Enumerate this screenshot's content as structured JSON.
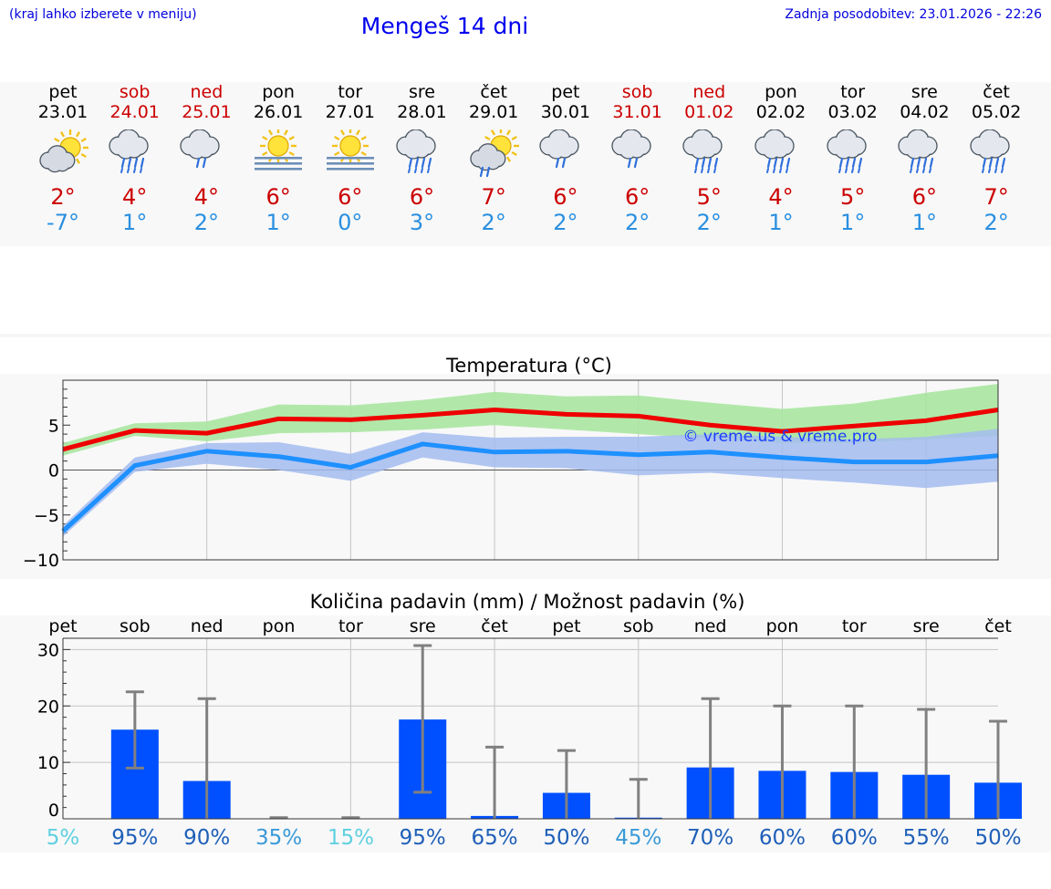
{
  "header": {
    "menu_hint": "(kraj lahko izberete v meniju)",
    "title": "Mengeš 14 dni",
    "updated": "Zadnja posodobitev: 23.01.2026 - 22:26"
  },
  "days": [
    {
      "name": "pet",
      "date": "23.01",
      "weekend": false,
      "icon": "sun-cloud-icon",
      "tmax": "2°",
      "tmin": "-7°"
    },
    {
      "name": "sob",
      "date": "24.01",
      "weekend": true,
      "icon": "rain-cloud-icon",
      "tmax": "4°",
      "tmin": "1°"
    },
    {
      "name": "ned",
      "date": "25.01",
      "weekend": true,
      "icon": "light-rain-cloud-icon",
      "tmax": "4°",
      "tmin": "2°"
    },
    {
      "name": "pon",
      "date": "26.01",
      "weekend": false,
      "icon": "sun-fog-icon",
      "tmax": "6°",
      "tmin": "1°"
    },
    {
      "name": "tor",
      "date": "27.01",
      "weekend": false,
      "icon": "sun-fog-icon",
      "tmax": "6°",
      "tmin": "0°"
    },
    {
      "name": "sre",
      "date": "28.01",
      "weekend": false,
      "icon": "rain-cloud-icon",
      "tmax": "6°",
      "tmin": "3°"
    },
    {
      "name": "čet",
      "date": "29.01",
      "weekend": false,
      "icon": "sun-cloud-rain-icon",
      "tmax": "7°",
      "tmin": "2°"
    },
    {
      "name": "pet",
      "date": "30.01",
      "weekend": false,
      "icon": "light-rain-cloud-icon",
      "tmax": "6°",
      "tmin": "2°"
    },
    {
      "name": "sob",
      "date": "31.01",
      "weekend": true,
      "icon": "light-rain-cloud-icon",
      "tmax": "6°",
      "tmin": "2°"
    },
    {
      "name": "ned",
      "date": "01.02",
      "weekend": true,
      "icon": "rain-cloud-icon",
      "tmax": "5°",
      "tmin": "2°"
    },
    {
      "name": "pon",
      "date": "02.02",
      "weekend": false,
      "icon": "rain-cloud-icon",
      "tmax": "4°",
      "tmin": "1°"
    },
    {
      "name": "tor",
      "date": "03.02",
      "weekend": false,
      "icon": "rain-cloud-icon",
      "tmax": "5°",
      "tmin": "1°"
    },
    {
      "name": "sre",
      "date": "04.02",
      "weekend": false,
      "icon": "rain-cloud-icon",
      "tmax": "6°",
      "tmin": "1°"
    },
    {
      "name": "čet",
      "date": "05.02",
      "weekend": false,
      "icon": "rain-cloud-icon",
      "tmax": "7°",
      "tmin": "2°"
    }
  ],
  "colors": {
    "max_line": "#ee0000",
    "max_band": "#a8e6a0",
    "min_line": "#1e90ff",
    "min_band": "#a4bcf0",
    "bar": "#0050ff",
    "whisker": "#808080",
    "weekend": "#cc0000"
  },
  "chart_data": [
    {
      "type": "line",
      "title": "Temperatura (°C)",
      "ylim": [
        -10,
        10
      ],
      "yticks": [
        "5",
        "0",
        "−5",
        "−10"
      ],
      "ytick_values": [
        5,
        0,
        -5,
        -10
      ],
      "x": [
        0,
        1,
        2,
        3,
        4,
        5,
        6,
        7,
        8,
        9,
        10,
        11,
        12,
        13
      ],
      "grid": true,
      "watermark": "© vreme.us & vreme.pro",
      "series": [
        {
          "name": "max",
          "values": [
            2.3,
            4.4,
            4.1,
            5.7,
            5.6,
            6.1,
            6.7,
            6.2,
            6.0,
            5.0,
            4.3,
            4.9,
            5.5,
            6.7
          ],
          "band_low": [
            1.6,
            3.8,
            3.2,
            4.1,
            4.2,
            4.5,
            5.0,
            4.5,
            4.0,
            3.5,
            3.0,
            3.0,
            3.4,
            3.8
          ],
          "band_high": [
            3.0,
            5.2,
            5.4,
            7.3,
            7.2,
            7.8,
            8.7,
            8.2,
            8.3,
            7.5,
            6.8,
            7.4,
            8.6,
            9.6
          ]
        },
        {
          "name": "min",
          "values": [
            -6.8,
            0.5,
            2.1,
            1.5,
            0.3,
            2.9,
            2.0,
            2.1,
            1.7,
            2.0,
            1.4,
            0.9,
            0.9,
            1.6
          ],
          "band_low": [
            -7.4,
            -0.2,
            0.7,
            0.0,
            -1.2,
            1.4,
            0.3,
            0.2,
            -0.6,
            -0.3,
            -0.9,
            -1.4,
            -2.0,
            -1.3
          ],
          "band_high": [
            -6.2,
            1.4,
            3.0,
            3.1,
            1.8,
            4.2,
            3.6,
            3.7,
            3.7,
            4.0,
            3.7,
            3.4,
            3.7,
            4.6
          ]
        }
      ]
    },
    {
      "type": "bar",
      "title": "Količina padavin (mm) / Možnost padavin (%)",
      "categories": [
        "pet",
        "sob",
        "ned",
        "pon",
        "tor",
        "sre",
        "čet",
        "pet",
        "sob",
        "ned",
        "pon",
        "tor",
        "sre",
        "čet"
      ],
      "ylim": [
        0,
        32
      ],
      "yticks": [
        "30",
        "20",
        "10",
        "0"
      ],
      "ytick_values": [
        30,
        20,
        10,
        0
      ],
      "values": [
        0,
        15.8,
        6.7,
        0,
        0,
        17.6,
        0.5,
        4.6,
        0.2,
        9.1,
        8.5,
        8.3,
        7.8,
        6.4
      ],
      "err_low": [
        0,
        9.0,
        0,
        0,
        0,
        4.7,
        0,
        0,
        0,
        0,
        0,
        0,
        0,
        0
      ],
      "err_high": [
        0,
        22.5,
        21.3,
        0.2,
        0.2,
        30.7,
        12.7,
        12.1,
        7.0,
        21.3,
        20.0,
        20.0,
        19.4,
        17.3
      ],
      "probabilities": [
        "5%",
        "95%",
        "90%",
        "35%",
        "15%",
        "95%",
        "65%",
        "50%",
        "45%",
        "70%",
        "60%",
        "60%",
        "55%",
        "50%"
      ],
      "probability_values": [
        5,
        95,
        90,
        35,
        15,
        95,
        65,
        50,
        45,
        70,
        60,
        60,
        55,
        50
      ]
    }
  ]
}
